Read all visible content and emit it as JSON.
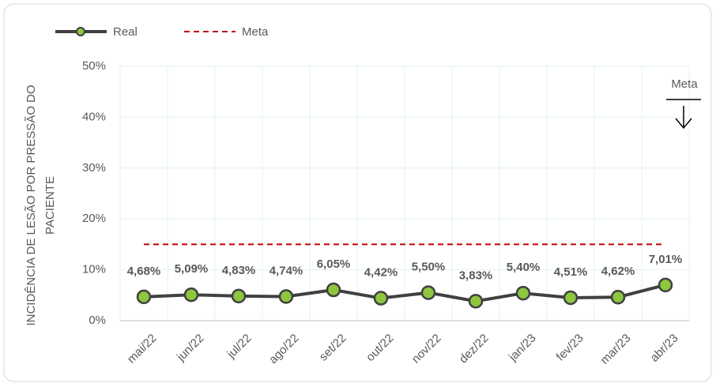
{
  "chart_data": {
    "type": "line",
    "y_label": [
      "INCIDÊNCIA DE LESÃO POR PRESSÃO DO",
      "PACIENTE"
    ],
    "categories": [
      "mai/22",
      "jun/22",
      "jul/22",
      "ago/22",
      "set/22",
      "out/22",
      "nov/22",
      "dez/22",
      "jan/23",
      "fev/23",
      "mar/23",
      "abr/23"
    ],
    "series": [
      {
        "name": "Real",
        "color": "#404040",
        "marker_color": "#8dc63f",
        "values": [
          4.68,
          5.09,
          4.83,
          4.74,
          6.05,
          4.42,
          5.5,
          3.83,
          5.4,
          4.51,
          4.62,
          7.01
        ],
        "value_labels": [
          "4,68%",
          "5,09%",
          "4,83%",
          "4,74%",
          "6,05%",
          "4,42%",
          "5,50%",
          "3,83%",
          "5,40%",
          "4,51%",
          "4,62%",
          "7,01%"
        ]
      },
      {
        "name": "Meta",
        "color": "#c00000",
        "dashed": true,
        "values": [
          15,
          15,
          15,
          15,
          15,
          15,
          15,
          15,
          15,
          15,
          15,
          15
        ]
      }
    ],
    "ylim": [
      0,
      50
    ],
    "yticks": [
      {
        "value": 0,
        "label": "0%"
      },
      {
        "value": 10,
        "label": "10%"
      },
      {
        "value": 20,
        "label": "20%"
      },
      {
        "value": 30,
        "label": "30%"
      },
      {
        "value": 40,
        "label": "40%"
      },
      {
        "value": 50,
        "label": "50%"
      }
    ],
    "grid": true,
    "legend": "top",
    "annotation": {
      "text": "Meta",
      "color": "#00a0e0"
    }
  }
}
